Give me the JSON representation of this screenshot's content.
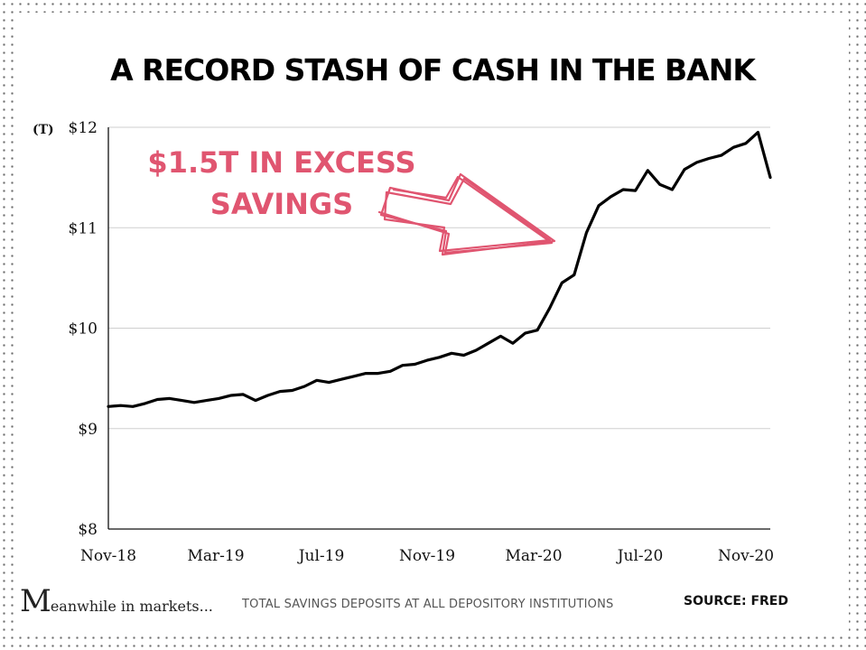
{
  "title": "A RECORD STASH OF CASH IN THE BANK",
  "chart_data": {
    "type": "line",
    "unit_label": "(T)",
    "ylim": [
      8,
      12
    ],
    "y_ticks": [
      {
        "value": 8,
        "label": "$8"
      },
      {
        "value": 9,
        "label": "$9"
      },
      {
        "value": 10,
        "label": "$10"
      },
      {
        "value": 11,
        "label": "$11"
      },
      {
        "value": 12,
        "label": "$12"
      }
    ],
    "x_ticks": [
      "Nov-18",
      "Mar-19",
      "Jul-19",
      "Nov-19",
      "Mar-20",
      "Jul-20",
      "Nov-20"
    ],
    "grid": true,
    "series": [
      {
        "color": "#000000",
        "values": [
          9.22,
          9.23,
          9.22,
          9.25,
          9.29,
          9.3,
          9.28,
          9.26,
          9.28,
          9.3,
          9.33,
          9.34,
          9.28,
          9.33,
          9.37,
          9.38,
          9.42,
          9.48,
          9.46,
          9.49,
          9.52,
          9.55,
          9.55,
          9.57,
          9.63,
          9.64,
          9.68,
          9.71,
          9.75,
          9.73,
          9.78,
          9.85,
          9.92,
          9.85,
          9.95,
          9.98,
          10.2,
          10.45,
          10.53,
          10.95,
          11.22,
          11.31,
          11.38,
          11.37,
          11.57,
          11.43,
          11.38,
          11.58,
          11.65,
          11.69,
          11.72,
          11.8,
          11.84,
          11.95,
          11.5
        ]
      }
    ],
    "annotations": [
      {
        "lines": [
          "$1.5T IN EXCESS",
          "SAVINGS"
        ],
        "color": "#e05570"
      }
    ]
  },
  "footer": {
    "logo_mark": "M",
    "logo_text": "eanwhile in markets...",
    "caption": "TOTAL SAVINGS DEPOSITS AT ALL DEPOSITORY INSTITUTIONS",
    "source": "SOURCE: FRED"
  }
}
